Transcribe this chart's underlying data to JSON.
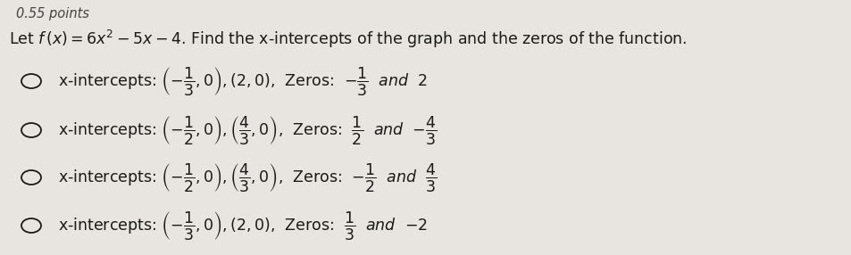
{
  "header_text": "0.55 points",
  "question": "Let $f\\,(x) = 6x^2 - 5x - 4$. Find the x-intercepts of the graph and the zeros of the function.",
  "options": [
    "x-intercepts: $\\left(-\\dfrac{1}{3},0\\right), (2,0)$,  Zeros:  $-\\dfrac{1}{3}$  $\\mathit{and}$  $2$",
    "x-intercepts: $\\left(-\\dfrac{1}{2},0\\right), \\left(\\dfrac{4}{3},0\\right)$,  Zeros:  $\\dfrac{1}{2}$  $\\mathit{and}$  $-\\dfrac{4}{3}$",
    "x-intercepts: $\\left(-\\dfrac{1}{2},0\\right), \\left(\\dfrac{4}{3},0\\right)$,  Zeros:  $-\\dfrac{1}{2}$  $\\mathit{and}$  $\\dfrac{4}{3}$",
    "x-intercepts: $\\left(-\\dfrac{1}{3},0\\right), (2,0)$,  Zeros:  $\\dfrac{1}{3}$  $\\mathit{and}$  $-2$"
  ],
  "background_color": "#e8e4df",
  "text_color": "#1a1a1a",
  "circle_color": "#1a1a1a",
  "header_color": "#444444",
  "question_fontsize": 12.5,
  "option_fontsize": 12.5,
  "header_fontsize": 10.5,
  "figwidth": 9.54,
  "figheight": 2.86,
  "dpi": 100
}
